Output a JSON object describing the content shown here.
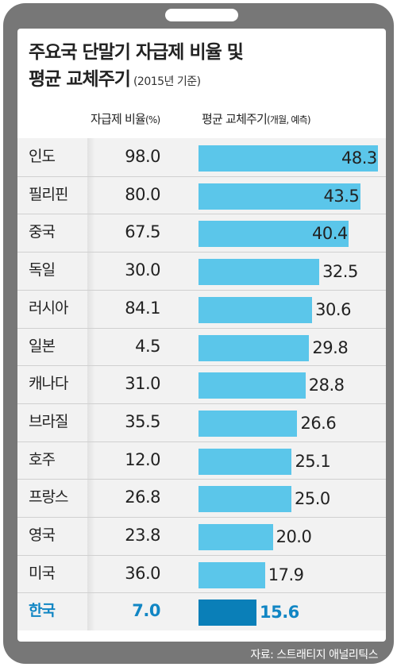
{
  "title_line1": "주요국 단말기 자급제 비율 및",
  "title_line2": "평균 교체주기",
  "subtitle": "(2015년 기준)",
  "header_ratio_main": "자급제 비율",
  "header_ratio_unit": "(%)",
  "header_cycle_main": "평균 교체주기",
  "header_cycle_unit": "(개월, 예측)",
  "source": "자료: 스트래티지 애널리틱스",
  "colors": {
    "bar": "#5bc6ea",
    "bar_highlight": "#0a7fb8",
    "highlight_text": "#1186c4",
    "frame": "#777777"
  },
  "chart_data": {
    "type": "bar",
    "orientation": "horizontal",
    "title": "주요국 단말기 자급제 비율 및 평균 교체주기",
    "subtitle": "(2015년 기준)",
    "categories": [
      "인도",
      "필리핀",
      "중국",
      "독일",
      "러시아",
      "일본",
      "캐나다",
      "브라질",
      "호주",
      "프랑스",
      "영국",
      "미국",
      "한국"
    ],
    "self_supply_ratio": [
      "98.0",
      "80.0",
      "67.5",
      "30.0",
      "84.1",
      "4.5",
      "31.0",
      "35.5",
      "12.0",
      "26.8",
      "23.8",
      "36.0",
      "7.0"
    ],
    "replacement_cycle_labels": [
      "48.3",
      "43.5",
      "40.4",
      "32.5",
      "30.6",
      "29.8",
      "28.8",
      "26.6",
      "25.1",
      "25.0",
      "20.0",
      "17.9",
      "15.6"
    ],
    "series": [
      {
        "name": "평균 교체주기",
        "values": [
          48.3,
          43.5,
          40.4,
          32.5,
          30.6,
          29.8,
          28.8,
          26.6,
          25.1,
          25.0,
          20.0,
          17.9,
          15.6
        ]
      }
    ],
    "xlim": [
      0,
      48.3
    ],
    "highlight_category": "한국",
    "grid": false,
    "legend": "none"
  }
}
